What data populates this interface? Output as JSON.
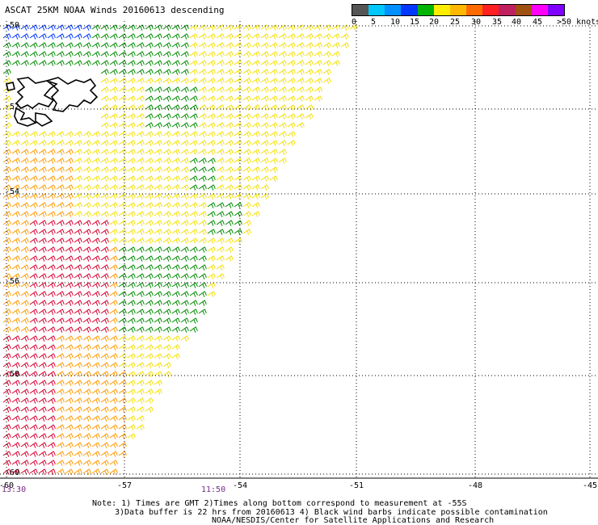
{
  "title": "ASCAT 25KM NOAA Winds 20160613 descending",
  "legend": {
    "colors": [
      "#555555",
      "#00c8ff",
      "#0090ff",
      "#0038ff",
      "#00b400",
      "#ffee00",
      "#ffb800",
      "#ff6a00",
      "#ff2020",
      "#c02060",
      "#a05010",
      "#ff00ff",
      "#8000ff"
    ],
    "labels": [
      "0",
      "5",
      "10",
      "15",
      "20",
      "25",
      "30",
      "35",
      "40",
      "45",
      ">50 knots"
    ]
  },
  "lat_labels": [
    "-50",
    "-52",
    "-54",
    "-56",
    "-58",
    "-60"
  ],
  "lon_labels": [
    "-57",
    "-54",
    "-51",
    "-48",
    "-45"
  ],
  "corner_lon_label": "-60",
  "time_labels": [
    "13:30",
    "11:50"
  ],
  "notes": [
    "Note: 1) Times are GMT 2)Times along bottom correspond to measurement at -55S",
    "3)Data buffer is 22 hrs from 20160613 4) Black wind barbs indicate possible contamination",
    "NOAA/NESDIS/Center for Satellite Applications and Research"
  ],
  "map": {
    "projection_grid": "latitude -50 to -60, longitude -60 to -45",
    "land": "Falkland Islands",
    "wind_colors": {
      "blue": "#0038ff",
      "green": "#008c00",
      "yellow": "#f4e000",
      "orange": "#ff9a00",
      "red": "#d80030",
      "black": "#000000"
    }
  }
}
